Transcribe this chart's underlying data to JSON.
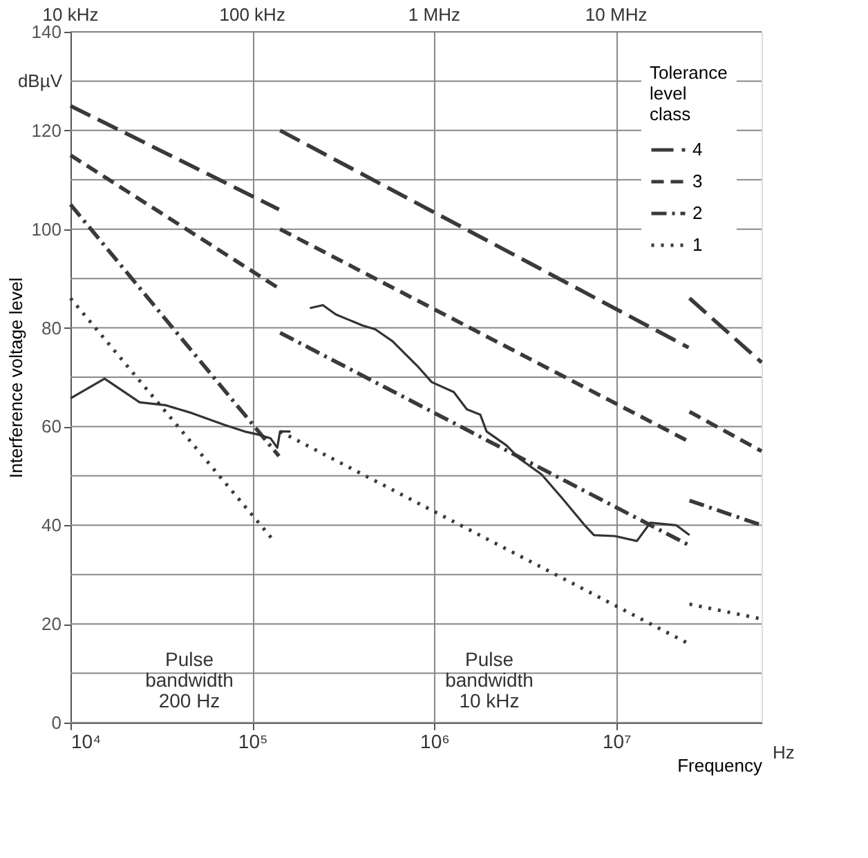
{
  "chart_data": {
    "type": "line",
    "xlabel": "Frequency",
    "ylabel": "Interference voltage level",
    "legend_title": "Tolerance level class",
    "log": "x",
    "grid": true,
    "legend": "top right",
    "xlim": [
      10000,
      63000000
    ],
    "ylim": [
      0,
      140
    ],
    "xticks": [
      {
        "value": 10000,
        "label": "10⁴"
      },
      {
        "value": 100000,
        "label": "10⁵"
      },
      {
        "value": 1000000,
        "label": "10⁶"
      },
      {
        "value": 10000000,
        "label": "10⁷"
      }
    ],
    "yticks": [
      0,
      {
        "value": 10,
        "label": null
      },
      20,
      {
        "value": 30,
        "label": null
      },
      40,
      {
        "value": 50,
        "label": null
      },
      60,
      {
        "value": 70,
        "label": null
      },
      80,
      {
        "value": 90,
        "label": null
      },
      100,
      {
        "value": 110,
        "label": null
      },
      120,
      {
        "value": 130,
        "label": null
      },
      140
    ],
    "series": [
      {
        "name": "4",
        "color": "#3a3a3a",
        "line_style": "longdash",
        "x": [
          10000,
          140000
        ],
        "values": [
          125,
          104
        ]
      },
      {
        "color": "#3a3a3a",
        "line_style": "longdash",
        "x": [
          142000,
          25000000
        ],
        "values": [
          120,
          76
        ]
      },
      {
        "color": "#3a3a3a",
        "line_style": "longdash",
        "x": [
          25300000,
          63000000
        ],
        "values": [
          86,
          73
        ]
      },
      {
        "name": "3",
        "color": "#3a3a3a",
        "line_style": "dashed",
        "x": [
          10000,
          140000
        ],
        "values": [
          115,
          88
        ]
      },
      {
        "color": "#3a3a3a",
        "line_style": "dashed",
        "x": [
          142000,
          25000000
        ],
        "values": [
          100,
          57
        ]
      },
      {
        "color": "#3a3a3a",
        "line_style": "dashed",
        "x": [
          25300000,
          63000000
        ],
        "values": [
          63,
          55
        ]
      },
      {
        "name": "2",
        "color": "#3a3a3a",
        "line_style": "dashdot",
        "x": [
          10000,
          140000
        ],
        "values": [
          105,
          54
        ]
      },
      {
        "color": "#3a3a3a",
        "line_style": "dashdot",
        "x": [
          142000,
          25000000
        ],
        "values": [
          79,
          36
        ]
      },
      {
        "color": "#3a3a3a",
        "line_style": "dashdot",
        "x": [
          25300000,
          63000000
        ],
        "values": [
          45,
          40
        ]
      },
      {
        "name": "1",
        "color": "#3a3a3a",
        "line_style": "dotted",
        "x": [
          10000,
          130000
        ],
        "values": [
          86,
          37
        ]
      },
      {
        "color": "#3a3a3a",
        "line_style": "dotted",
        "x": [
          142000,
          25000000
        ],
        "values": [
          59,
          16
        ]
      },
      {
        "color": "#3a3a3a",
        "line_style": "dotted",
        "x": [
          25300000,
          63000000
        ],
        "values": [
          24,
          21
        ]
      },
      {
        "color": "#333333",
        "line_style": "solid",
        "x": [
          10000,
          15400,
          24000,
          33500,
          46700,
          70600,
          90600,
          107000,
          126000,
          137000,
          142000,
          162000,
          170000,
          207000,
          244000,
          288000,
          402000,
          474000,
          589000,
          820000,
          968000,
          1280000,
          1510000,
          1790000,
          1940000,
          2490000,
          2940000,
          3890000,
          5070000,
          6710000,
          7550000,
          9840000,
          13000000,
          15400000,
          21400000,
          25300000
        ],
        "values": [
          65.7,
          69.7,
          64.9,
          64.3,
          62.7,
          60.3,
          59,
          58.4,
          57.6,
          55.7,
          59,
          59,
          null,
          84,
          84.6,
          82.7,
          80.5,
          79.7,
          77.3,
          72,
          69,
          67,
          63.5,
          62.4,
          59,
          56.2,
          53.5,
          50.3,
          45.4,
          40,
          38,
          37.8,
          36.8,
          40.5,
          40,
          38
        ]
      }
    ],
    "annotations": [
      "dBµV",
      "Hz",
      "Pulse bandwidth 200 Hz",
      "Pulse bandwidth 10 kHz",
      "10 kHz",
      "100 kHz",
      "1 MHz",
      "10 MHz"
    ]
  }
}
